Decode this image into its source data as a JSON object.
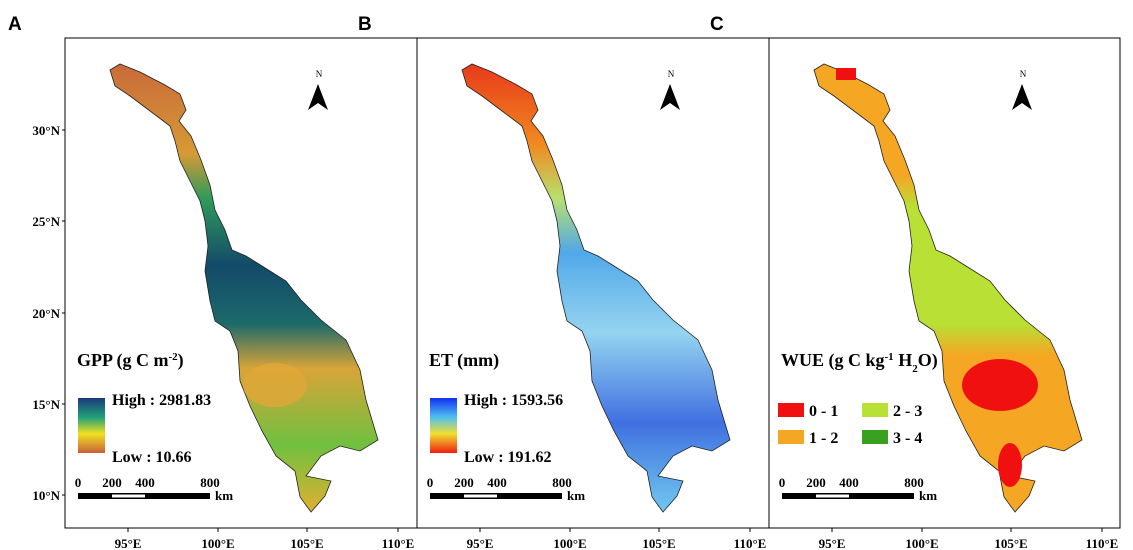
{
  "figure": {
    "y_labels": [
      "30°N",
      "25°N",
      "20°N",
      "15°N",
      "10°N"
    ],
    "panels": [
      {
        "label": "A",
        "x_labels": [
          "95°E",
          "100°E",
          "105°E",
          "110°E"
        ],
        "north": "N",
        "legend": {
          "title": {
            "main": "GPP (g C m",
            "sup": "-2",
            "end": ")"
          },
          "high": "High : 2981.83",
          "low": "Low : 10.66"
        },
        "scale": [
          "0",
          "200",
          "400",
          "800",
          "km"
        ]
      },
      {
        "label": "B",
        "x_labels": [
          "95°E",
          "100°E",
          "105°E",
          "110°E"
        ],
        "north": "N",
        "legend": {
          "title": {
            "main": "ET (mm)"
          },
          "high": "High : 1593.56",
          "low": "Low : 191.62"
        },
        "scale": [
          "0",
          "200",
          "400",
          "800",
          "km"
        ]
      },
      {
        "label": "C",
        "x_labels": [
          "95°E",
          "100°E",
          "105°E",
          "110°E"
        ],
        "north": "N",
        "legend": {
          "title": {
            "main": "WUE (g C kg",
            "sup": "-1",
            "mid": " H",
            "sub": "2",
            "end": "O)"
          },
          "classes": [
            "0 - 1",
            "1 - 2",
            "2 - 3",
            "3 - 4"
          ]
        },
        "scale": [
          "0",
          "200",
          "400",
          "800",
          "km"
        ]
      }
    ]
  }
}
